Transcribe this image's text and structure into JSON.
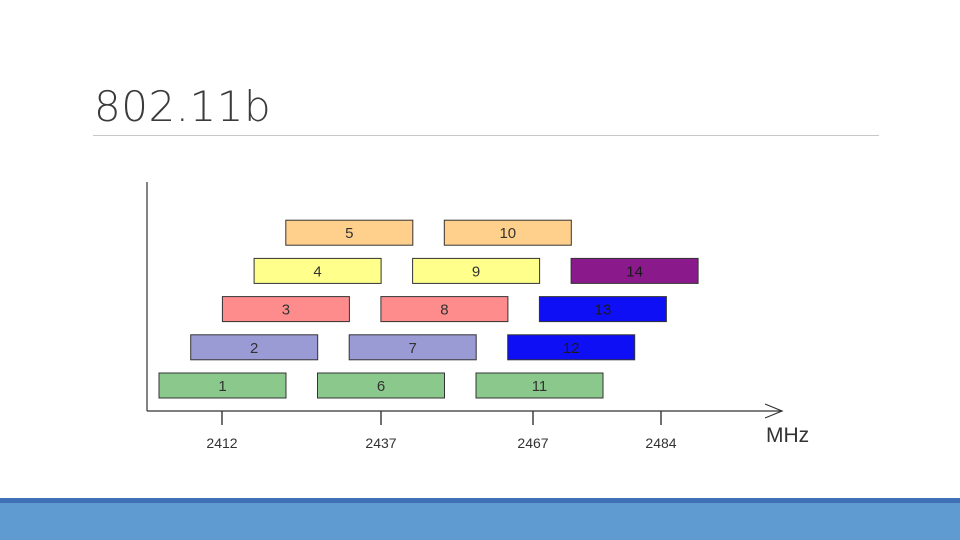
{
  "title": "802.11b",
  "chart": {
    "unit": "MHz",
    "ticks": [
      {
        "value": 2412,
        "label": "2412"
      },
      {
        "value": 2437,
        "label": "2437"
      },
      {
        "value": 2467,
        "label": "2467"
      },
      {
        "value": 2484,
        "label": "2484"
      }
    ],
    "channels": [
      {
        "label": "1",
        "row": 1,
        "color": "#8bc88b"
      },
      {
        "label": "2",
        "row": 2,
        "color": "#9a9ad4"
      },
      {
        "label": "3",
        "row": 3,
        "color": "#ff8c8c"
      },
      {
        "label": "4",
        "row": 4,
        "color": "#ffff8c"
      },
      {
        "label": "5",
        "row": 5,
        "color": "#ffd08c"
      },
      {
        "label": "6",
        "row": 1,
        "color": "#8bc88b"
      },
      {
        "label": "7",
        "row": 2,
        "color": "#9a9ad4"
      },
      {
        "label": "8",
        "row": 3,
        "color": "#ff8c8c"
      },
      {
        "label": "9",
        "row": 4,
        "color": "#ffff8c"
      },
      {
        "label": "10",
        "row": 5,
        "color": "#ffd08c"
      },
      {
        "label": "11",
        "row": 1,
        "color": "#8bc88b"
      },
      {
        "label": "12",
        "row": 2,
        "color": "#0f0ff5"
      },
      {
        "label": "13",
        "row": 3,
        "color": "#0f0ff5"
      },
      {
        "label": "14",
        "row": 4,
        "color": "#8a1a8c"
      }
    ]
  }
}
